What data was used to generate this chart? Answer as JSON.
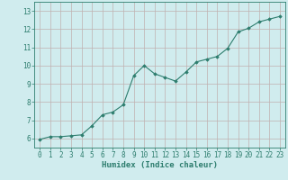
{
  "x": [
    0,
    1,
    2,
    3,
    4,
    5,
    6,
    7,
    8,
    9,
    10,
    11,
    12,
    13,
    14,
    15,
    16,
    17,
    18,
    19,
    20,
    21,
    22,
    23
  ],
  "y": [
    5.95,
    6.1,
    6.1,
    6.15,
    6.2,
    6.7,
    7.3,
    7.45,
    7.85,
    9.45,
    10.0,
    9.55,
    9.35,
    9.15,
    9.65,
    10.2,
    10.35,
    10.5,
    10.95,
    11.85,
    12.05,
    12.4,
    12.55,
    12.7
  ],
  "xlim": [
    -0.5,
    23.5
  ],
  "ylim": [
    5.5,
    13.5
  ],
  "yticks": [
    6,
    7,
    8,
    9,
    10,
    11,
    12,
    13
  ],
  "xticks": [
    0,
    1,
    2,
    3,
    4,
    5,
    6,
    7,
    8,
    9,
    10,
    11,
    12,
    13,
    14,
    15,
    16,
    17,
    18,
    19,
    20,
    21,
    22,
    23
  ],
  "xlabel": "Humidex (Indice chaleur)",
  "line_color": "#2d7d6e",
  "marker": "D",
  "marker_size": 1.8,
  "bg_color": "#d0ecee",
  "grid_color": "#c0b0b0",
  "axis_color": "#2d7d6e",
  "tick_color": "#2d7d6e",
  "label_color": "#2d7d6e",
  "xlabel_fontsize": 6.5,
  "tick_fontsize": 5.5
}
